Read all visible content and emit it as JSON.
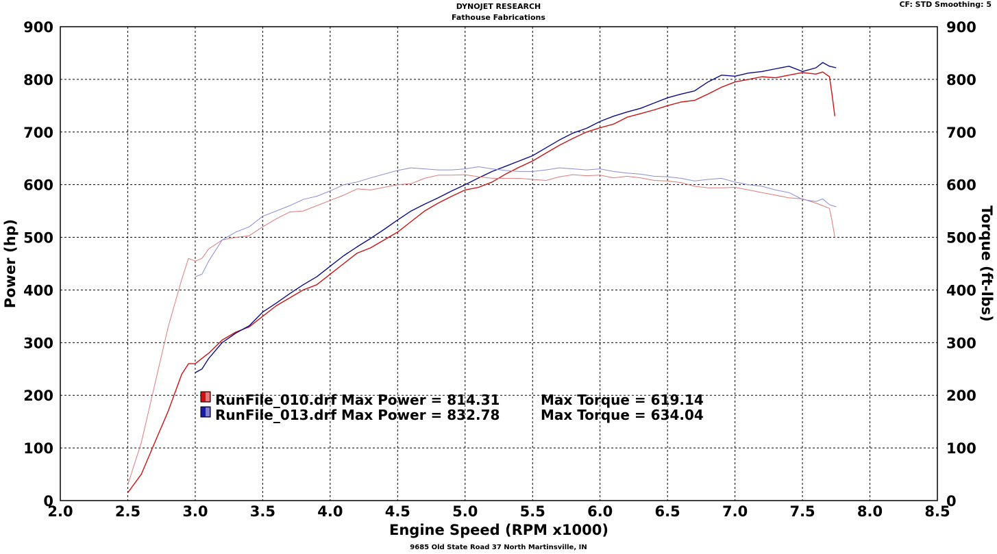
{
  "header": {
    "title": "DYNOJET RESEARCH",
    "subtitle": "Fathouse Fabrications",
    "cf_info": "CF: STD  Smoothing: 5"
  },
  "footer": {
    "address": "9685 Old State Road 37 North Martinsville, IN"
  },
  "colors": {
    "run010": "#cc1111",
    "run013": "#0a0a8a",
    "grid": "#000000"
  },
  "chart_data": {
    "type": "line",
    "xlabel": "Engine Speed (RPM x1000)",
    "ylabel_left": "Power (hp)",
    "ylabel_right": "Torque (ft-lbs)",
    "xlim": [
      2.0,
      8.5
    ],
    "ylim_left": [
      0,
      900
    ],
    "ylim_right": [
      0,
      900
    ],
    "x_ticks": [
      "2.0",
      "2.5",
      "3.0",
      "3.5",
      "4.0",
      "4.5",
      "5.0",
      "5.5",
      "6.0",
      "6.5",
      "7.0",
      "7.5",
      "8.0",
      "8.5"
    ],
    "y_ticks": [
      "0",
      "100",
      "200",
      "300",
      "400",
      "500",
      "600",
      "700",
      "800",
      "900"
    ],
    "grid": true,
    "series": [
      {
        "name": "RunFile_010.drf",
        "measure": "power",
        "color": "#cc1111",
        "stroke": 1.4,
        "points": [
          [
            2.5,
            15
          ],
          [
            2.6,
            50
          ],
          [
            2.7,
            110
          ],
          [
            2.8,
            170
          ],
          [
            2.9,
            240
          ],
          [
            2.95,
            260
          ],
          [
            3.0,
            260
          ],
          [
            3.1,
            280
          ],
          [
            3.2,
            305
          ],
          [
            3.3,
            320
          ],
          [
            3.4,
            330
          ],
          [
            3.5,
            350
          ],
          [
            3.6,
            370
          ],
          [
            3.7,
            385
          ],
          [
            3.8,
            400
          ],
          [
            3.9,
            410
          ],
          [
            4.0,
            430
          ],
          [
            4.1,
            450
          ],
          [
            4.2,
            470
          ],
          [
            4.3,
            480
          ],
          [
            4.4,
            495
          ],
          [
            4.5,
            510
          ],
          [
            4.6,
            530
          ],
          [
            4.7,
            550
          ],
          [
            4.8,
            565
          ],
          [
            4.9,
            578
          ],
          [
            5.0,
            590
          ],
          [
            5.1,
            595
          ],
          [
            5.2,
            605
          ],
          [
            5.3,
            620
          ],
          [
            5.4,
            633
          ],
          [
            5.5,
            645
          ],
          [
            5.6,
            660
          ],
          [
            5.7,
            675
          ],
          [
            5.8,
            688
          ],
          [
            5.9,
            700
          ],
          [
            6.0,
            708
          ],
          [
            6.1,
            715
          ],
          [
            6.2,
            728
          ],
          [
            6.3,
            735
          ],
          [
            6.4,
            742
          ],
          [
            6.5,
            750
          ],
          [
            6.6,
            757
          ],
          [
            6.7,
            760
          ],
          [
            6.8,
            772
          ],
          [
            6.9,
            785
          ],
          [
            7.0,
            795
          ],
          [
            7.1,
            800
          ],
          [
            7.2,
            805
          ],
          [
            7.3,
            803
          ],
          [
            7.4,
            808
          ],
          [
            7.5,
            813
          ],
          [
            7.6,
            810
          ],
          [
            7.65,
            814
          ],
          [
            7.7,
            805
          ],
          [
            7.72,
            770
          ],
          [
            7.74,
            730
          ]
        ]
      },
      {
        "name": "RunFile_013.drf",
        "measure": "power",
        "color": "#0a0a8a",
        "stroke": 1.4,
        "points": [
          [
            3.0,
            243
          ],
          [
            3.05,
            250
          ],
          [
            3.1,
            270
          ],
          [
            3.2,
            300
          ],
          [
            3.3,
            318
          ],
          [
            3.4,
            332
          ],
          [
            3.5,
            358
          ],
          [
            3.6,
            375
          ],
          [
            3.7,
            393
          ],
          [
            3.8,
            410
          ],
          [
            3.9,
            425
          ],
          [
            4.0,
            445
          ],
          [
            4.1,
            465
          ],
          [
            4.2,
            482
          ],
          [
            4.3,
            498
          ],
          [
            4.4,
            515
          ],
          [
            4.5,
            533
          ],
          [
            4.6,
            550
          ],
          [
            4.7,
            563
          ],
          [
            4.8,
            575
          ],
          [
            4.9,
            588
          ],
          [
            5.0,
            600
          ],
          [
            5.1,
            613
          ],
          [
            5.2,
            625
          ],
          [
            5.3,
            635
          ],
          [
            5.4,
            645
          ],
          [
            5.5,
            655
          ],
          [
            5.6,
            670
          ],
          [
            5.7,
            685
          ],
          [
            5.8,
            698
          ],
          [
            5.9,
            707
          ],
          [
            6.0,
            720
          ],
          [
            6.1,
            730
          ],
          [
            6.2,
            738
          ],
          [
            6.3,
            745
          ],
          [
            6.4,
            755
          ],
          [
            6.5,
            765
          ],
          [
            6.6,
            772
          ],
          [
            6.7,
            778
          ],
          [
            6.8,
            795
          ],
          [
            6.9,
            808
          ],
          [
            7.0,
            806
          ],
          [
            7.1,
            812
          ],
          [
            7.2,
            815
          ],
          [
            7.3,
            820
          ],
          [
            7.4,
            825
          ],
          [
            7.5,
            815
          ],
          [
            7.6,
            822
          ],
          [
            7.65,
            832
          ],
          [
            7.7,
            825
          ],
          [
            7.75,
            822
          ]
        ]
      },
      {
        "name": "RunFile_010.drf",
        "measure": "torque",
        "color": "#e07878",
        "stroke": 1.0,
        "points": [
          [
            2.5,
            30
          ],
          [
            2.6,
            110
          ],
          [
            2.7,
            220
          ],
          [
            2.8,
            330
          ],
          [
            2.9,
            420
          ],
          [
            2.95,
            460
          ],
          [
            3.0,
            455
          ],
          [
            3.05,
            460
          ],
          [
            3.1,
            478
          ],
          [
            3.2,
            495
          ],
          [
            3.3,
            500
          ],
          [
            3.4,
            503
          ],
          [
            3.5,
            520
          ],
          [
            3.6,
            535
          ],
          [
            3.7,
            548
          ],
          [
            3.8,
            550
          ],
          [
            3.9,
            560
          ],
          [
            4.0,
            570
          ],
          [
            4.1,
            580
          ],
          [
            4.2,
            592
          ],
          [
            4.3,
            590
          ],
          [
            4.4,
            595
          ],
          [
            4.5,
            600
          ],
          [
            4.6,
            602
          ],
          [
            4.7,
            612
          ],
          [
            4.8,
            618
          ],
          [
            4.9,
            618
          ],
          [
            5.0,
            619
          ],
          [
            5.1,
            615
          ],
          [
            5.2,
            612
          ],
          [
            5.3,
            612
          ],
          [
            5.4,
            612
          ],
          [
            5.5,
            610
          ],
          [
            5.6,
            608
          ],
          [
            5.7,
            615
          ],
          [
            5.8,
            619
          ],
          [
            5.9,
            617
          ],
          [
            6.0,
            618
          ],
          [
            6.1,
            613
          ],
          [
            6.2,
            616
          ],
          [
            6.3,
            613
          ],
          [
            6.4,
            608
          ],
          [
            6.5,
            607
          ],
          [
            6.6,
            604
          ],
          [
            6.7,
            597
          ],
          [
            6.8,
            594
          ],
          [
            6.9,
            594
          ],
          [
            7.0,
            595
          ],
          [
            7.1,
            590
          ],
          [
            7.2,
            585
          ],
          [
            7.3,
            580
          ],
          [
            7.4,
            575
          ],
          [
            7.5,
            573
          ],
          [
            7.6,
            565
          ],
          [
            7.65,
            560
          ],
          [
            7.7,
            555
          ],
          [
            7.72,
            530
          ],
          [
            7.74,
            500
          ]
        ]
      },
      {
        "name": "RunFile_013.drf",
        "measure": "torque",
        "color": "#8a8ad8",
        "stroke": 1.0,
        "points": [
          [
            3.0,
            425
          ],
          [
            3.05,
            430
          ],
          [
            3.1,
            455
          ],
          [
            3.2,
            495
          ],
          [
            3.3,
            510
          ],
          [
            3.4,
            520
          ],
          [
            3.5,
            540
          ],
          [
            3.6,
            550
          ],
          [
            3.7,
            560
          ],
          [
            3.8,
            572
          ],
          [
            3.9,
            578
          ],
          [
            4.0,
            588
          ],
          [
            4.1,
            600
          ],
          [
            4.2,
            605
          ],
          [
            4.3,
            613
          ],
          [
            4.4,
            620
          ],
          [
            4.5,
            627
          ],
          [
            4.6,
            632
          ],
          [
            4.7,
            630
          ],
          [
            4.8,
            628
          ],
          [
            4.9,
            628
          ],
          [
            5.0,
            630
          ],
          [
            5.1,
            634
          ],
          [
            5.2,
            630
          ],
          [
            5.3,
            627
          ],
          [
            5.4,
            625
          ],
          [
            5.5,
            625
          ],
          [
            5.6,
            628
          ],
          [
            5.7,
            632
          ],
          [
            5.8,
            630
          ],
          [
            5.9,
            628
          ],
          [
            6.0,
            630
          ],
          [
            6.1,
            625
          ],
          [
            6.2,
            622
          ],
          [
            6.3,
            620
          ],
          [
            6.4,
            616
          ],
          [
            6.5,
            615
          ],
          [
            6.6,
            612
          ],
          [
            6.7,
            607
          ],
          [
            6.8,
            610
          ],
          [
            6.9,
            612
          ],
          [
            7.0,
            605
          ],
          [
            7.1,
            600
          ],
          [
            7.2,
            597
          ],
          [
            7.3,
            590
          ],
          [
            7.4,
            585
          ],
          [
            7.5,
            572
          ],
          [
            7.6,
            568
          ],
          [
            7.65,
            573
          ],
          [
            7.7,
            562
          ],
          [
            7.75,
            558
          ]
        ]
      }
    ],
    "legend": [
      {
        "text": "RunFile_010.drf Max Power = 814.31",
        "torque_text": "Max Torque = 619.14",
        "color": "#cc1111"
      },
      {
        "text": "RunFile_013.drf Max Power = 832.78",
        "torque_text": "Max Torque = 634.04",
        "color": "#1a1aa8"
      }
    ]
  }
}
